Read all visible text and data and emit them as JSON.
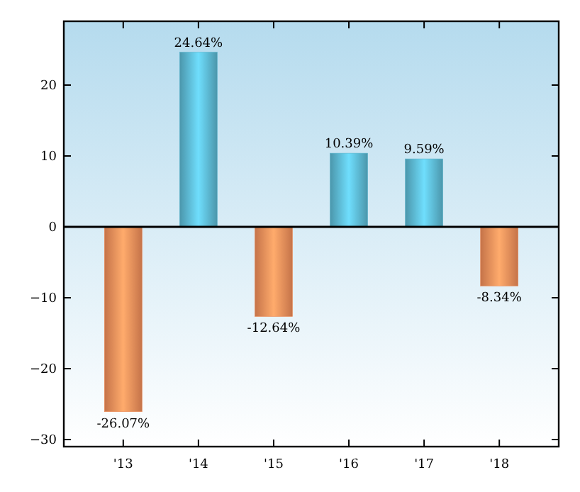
{
  "chart_data": {
    "type": "bar",
    "categories": [
      "'13",
      "'14",
      "'15",
      "'16",
      "'17",
      "'18"
    ],
    "values": [
      -26.07,
      24.64,
      -12.64,
      10.39,
      9.59,
      -8.34
    ],
    "colors": [
      "#ec8a57",
      "#5ab3cc",
      "#ec8a57",
      "#5ab3cc",
      "#5ab3cc",
      "#ec8a57"
    ],
    "value_labels": [
      "-26.07%",
      "24.64%",
      "-12.64%",
      "10.39%",
      "9.59%",
      "-8.34%"
    ],
    "ylim": [
      -31,
      29
    ],
    "yticks": [
      -30,
      -20,
      -10,
      0,
      10,
      20
    ],
    "grid": false,
    "ref_lines": [
      {
        "axis": "y",
        "value": 0,
        "color": "#000000"
      }
    ]
  }
}
